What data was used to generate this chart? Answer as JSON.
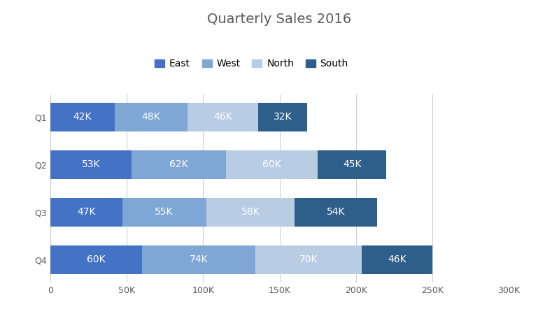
{
  "title": "Quarterly Sales 2016",
  "categories": [
    "Q1",
    "Q2",
    "Q3",
    "Q4"
  ],
  "series": {
    "East": [
      42000,
      53000,
      47000,
      60000
    ],
    "West": [
      48000,
      62000,
      55000,
      74000
    ],
    "North": [
      46000,
      60000,
      58000,
      70000
    ],
    "South": [
      32000,
      45000,
      54000,
      46000
    ]
  },
  "colors": {
    "East": "#4472C4",
    "West": "#7FA7D5",
    "North": "#B8CCE4",
    "South": "#2E5F8A"
  },
  "xlim": [
    0,
    300000
  ],
  "xticks": [
    0,
    50000,
    100000,
    150000,
    200000,
    250000,
    300000
  ],
  "xtick_labels": [
    "0",
    "50K",
    "100K",
    "150K",
    "200K",
    "250K",
    "300K"
  ],
  "bar_height": 0.6,
  "title_fontsize": 14,
  "label_fontsize": 10,
  "tick_fontsize": 9,
  "legend_fontsize": 10,
  "background_color": "#ffffff",
  "grid_color": "#D0D0D0",
  "title_color": "#595959",
  "tick_label_color": "#595959"
}
